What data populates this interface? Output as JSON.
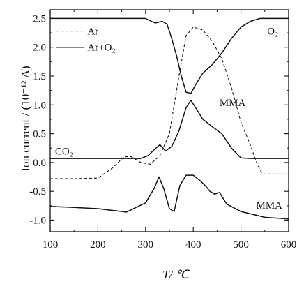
{
  "chart_data": {
    "type": "line",
    "xlabel": "T/ ℃",
    "ylabel": "Ion current / (10⁻¹² A)",
    "xlim": [
      100,
      600
    ],
    "ylim": [
      -1.2,
      2.65
    ],
    "xticks": [
      "100",
      "200",
      "300",
      "400",
      "500",
      "600"
    ],
    "yticks": [
      "2.5",
      "2.0",
      "1.5",
      "1.0",
      "0.5",
      "0.0",
      "-0.5",
      "-1.0"
    ],
    "legend": {
      "placement": "top-left",
      "entries": [
        {
          "label": "Ar",
          "style": "dashed"
        },
        {
          "label": "Ar+O₂",
          "style": "solid"
        }
      ]
    },
    "annotations": [
      "O₂",
      "MMA",
      "CO₂",
      "MMA"
    ],
    "series": [
      {
        "name": "Ar",
        "style": "dashed",
        "x": [
          100,
          150,
          200,
          230,
          255,
          270,
          290,
          310,
          330,
          350,
          370,
          385,
          400,
          420,
          440,
          460,
          480,
          500,
          520,
          535,
          545,
          570,
          600
        ],
        "y": [
          -0.28,
          -0.28,
          -0.27,
          -0.1,
          0.1,
          0.1,
          0.0,
          -0.03,
          0.12,
          0.5,
          1.5,
          2.2,
          2.35,
          2.3,
          2.1,
          1.8,
          1.3,
          0.7,
          0.3,
          -0.05,
          -0.2,
          -0.2,
          -0.2
        ]
      },
      {
        "name": "Ar+O₂ (O₂)",
        "style": "solid",
        "x": [
          100,
          200,
          300,
          320,
          335,
          345,
          355,
          365,
          375,
          385,
          395,
          405,
          420,
          440,
          460,
          480,
          500,
          520,
          540,
          560,
          600
        ],
        "y": [
          2.5,
          2.5,
          2.5,
          2.42,
          2.45,
          2.4,
          2.15,
          1.85,
          1.5,
          1.22,
          1.2,
          1.35,
          1.55,
          1.7,
          1.9,
          2.15,
          2.35,
          2.45,
          2.5,
          2.5,
          2.5
        ]
      },
      {
        "name": "Ar+O₂ (CO₂)",
        "style": "solid",
        "x": [
          100,
          200,
          290,
          305,
          318,
          330,
          342,
          355,
          370,
          385,
          395,
          405,
          420,
          440,
          460,
          480,
          500,
          520,
          540,
          600
        ],
        "y": [
          0.07,
          0.07,
          0.07,
          0.12,
          0.22,
          0.31,
          0.2,
          0.28,
          0.55,
          0.95,
          1.08,
          0.95,
          0.75,
          0.62,
          0.5,
          0.25,
          0.08,
          0.07,
          0.07,
          0.07
        ]
      },
      {
        "name": "Ar+O₂ (MMA)",
        "style": "solid",
        "x": [
          100,
          150,
          200,
          260,
          300,
          318,
          328,
          338,
          350,
          360,
          372,
          385,
          400,
          415,
          425,
          435,
          445,
          455,
          470,
          500,
          550,
          600
        ],
        "y": [
          -0.76,
          -0.78,
          -0.8,
          -0.86,
          -0.7,
          -0.45,
          -0.25,
          -0.45,
          -0.8,
          -0.85,
          -0.4,
          -0.22,
          -0.22,
          -0.32,
          -0.4,
          -0.5,
          -0.55,
          -0.52,
          -0.72,
          -0.85,
          -0.95,
          -0.98
        ]
      }
    ]
  }
}
